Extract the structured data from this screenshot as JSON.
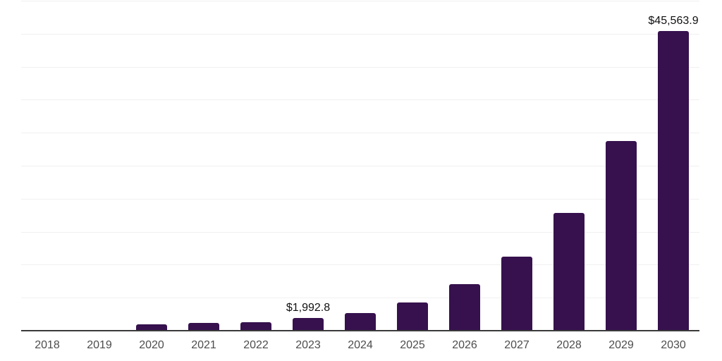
{
  "chart_data": {
    "type": "bar",
    "title": "",
    "xlabel": "",
    "ylabel": "",
    "categories": [
      "2018",
      "2019",
      "2020",
      "2021",
      "2022",
      "2023",
      "2024",
      "2025",
      "2026",
      "2027",
      "2028",
      "2029",
      "2030"
    ],
    "values": [
      0,
      0,
      1060,
      1250,
      1420,
      1992.8,
      2780,
      4410,
      7150,
      11290,
      18000,
      28800,
      45563.9
    ],
    "point_labels": {
      "2023": "$1,992.8",
      "2030": "$45,563.9"
    },
    "ylim": [
      0,
      50000
    ],
    "gridline_step": 5000,
    "grid": "horizontal-only",
    "legend": "none",
    "y_axis_ticks_visible": false,
    "bar_color": "#36114d"
  },
  "colors": {
    "background": "#ffffff",
    "bar": "#36114d",
    "axis_line": "#3a3a3a",
    "gridline": "#f0f0f0",
    "tick_label": "#4d4d4d",
    "data_label": "#111111"
  }
}
